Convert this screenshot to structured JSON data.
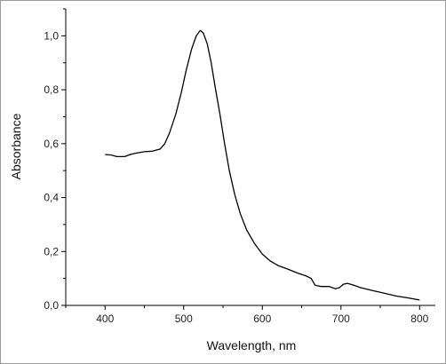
{
  "chart_data": {
    "type": "line",
    "xlabel": "Wavelength, nm",
    "ylabel": "Absorbance",
    "xlim": [
      350,
      820
    ],
    "ylim": [
      0.0,
      1.1
    ],
    "x_ticks": [
      "400",
      "500",
      "600",
      "700",
      "800"
    ],
    "y_ticks": [
      "0,0",
      "0,2",
      "0,4",
      "0,6",
      "0,8",
      "1,0"
    ],
    "grid": false,
    "series": [
      {
        "color": "#000000",
        "points": [
          [
            400,
            0.56
          ],
          [
            408,
            0.558
          ],
          [
            415,
            0.552
          ],
          [
            425,
            0.552
          ],
          [
            432,
            0.56
          ],
          [
            440,
            0.565
          ],
          [
            450,
            0.57
          ],
          [
            460,
            0.572
          ],
          [
            470,
            0.58
          ],
          [
            476,
            0.6
          ],
          [
            482,
            0.64
          ],
          [
            490,
            0.71
          ],
          [
            497,
            0.79
          ],
          [
            503,
            0.87
          ],
          [
            510,
            0.95
          ],
          [
            516,
            1.0
          ],
          [
            521,
            1.02
          ],
          [
            525,
            1.01
          ],
          [
            530,
            0.97
          ],
          [
            535,
            0.9
          ],
          [
            540,
            0.81
          ],
          [
            546,
            0.71
          ],
          [
            552,
            0.6
          ],
          [
            558,
            0.5
          ],
          [
            565,
            0.41
          ],
          [
            572,
            0.34
          ],
          [
            580,
            0.28
          ],
          [
            590,
            0.23
          ],
          [
            600,
            0.19
          ],
          [
            610,
            0.165
          ],
          [
            620,
            0.148
          ],
          [
            632,
            0.135
          ],
          [
            645,
            0.12
          ],
          [
            655,
            0.11
          ],
          [
            662,
            0.1
          ],
          [
            667,
            0.075
          ],
          [
            675,
            0.07
          ],
          [
            685,
            0.07
          ],
          [
            693,
            0.062
          ],
          [
            698,
            0.066
          ],
          [
            703,
            0.078
          ],
          [
            708,
            0.082
          ],
          [
            715,
            0.076
          ],
          [
            725,
            0.066
          ],
          [
            740,
            0.055
          ],
          [
            755,
            0.045
          ],
          [
            770,
            0.035
          ],
          [
            785,
            0.028
          ],
          [
            800,
            0.02
          ]
        ]
      }
    ]
  }
}
